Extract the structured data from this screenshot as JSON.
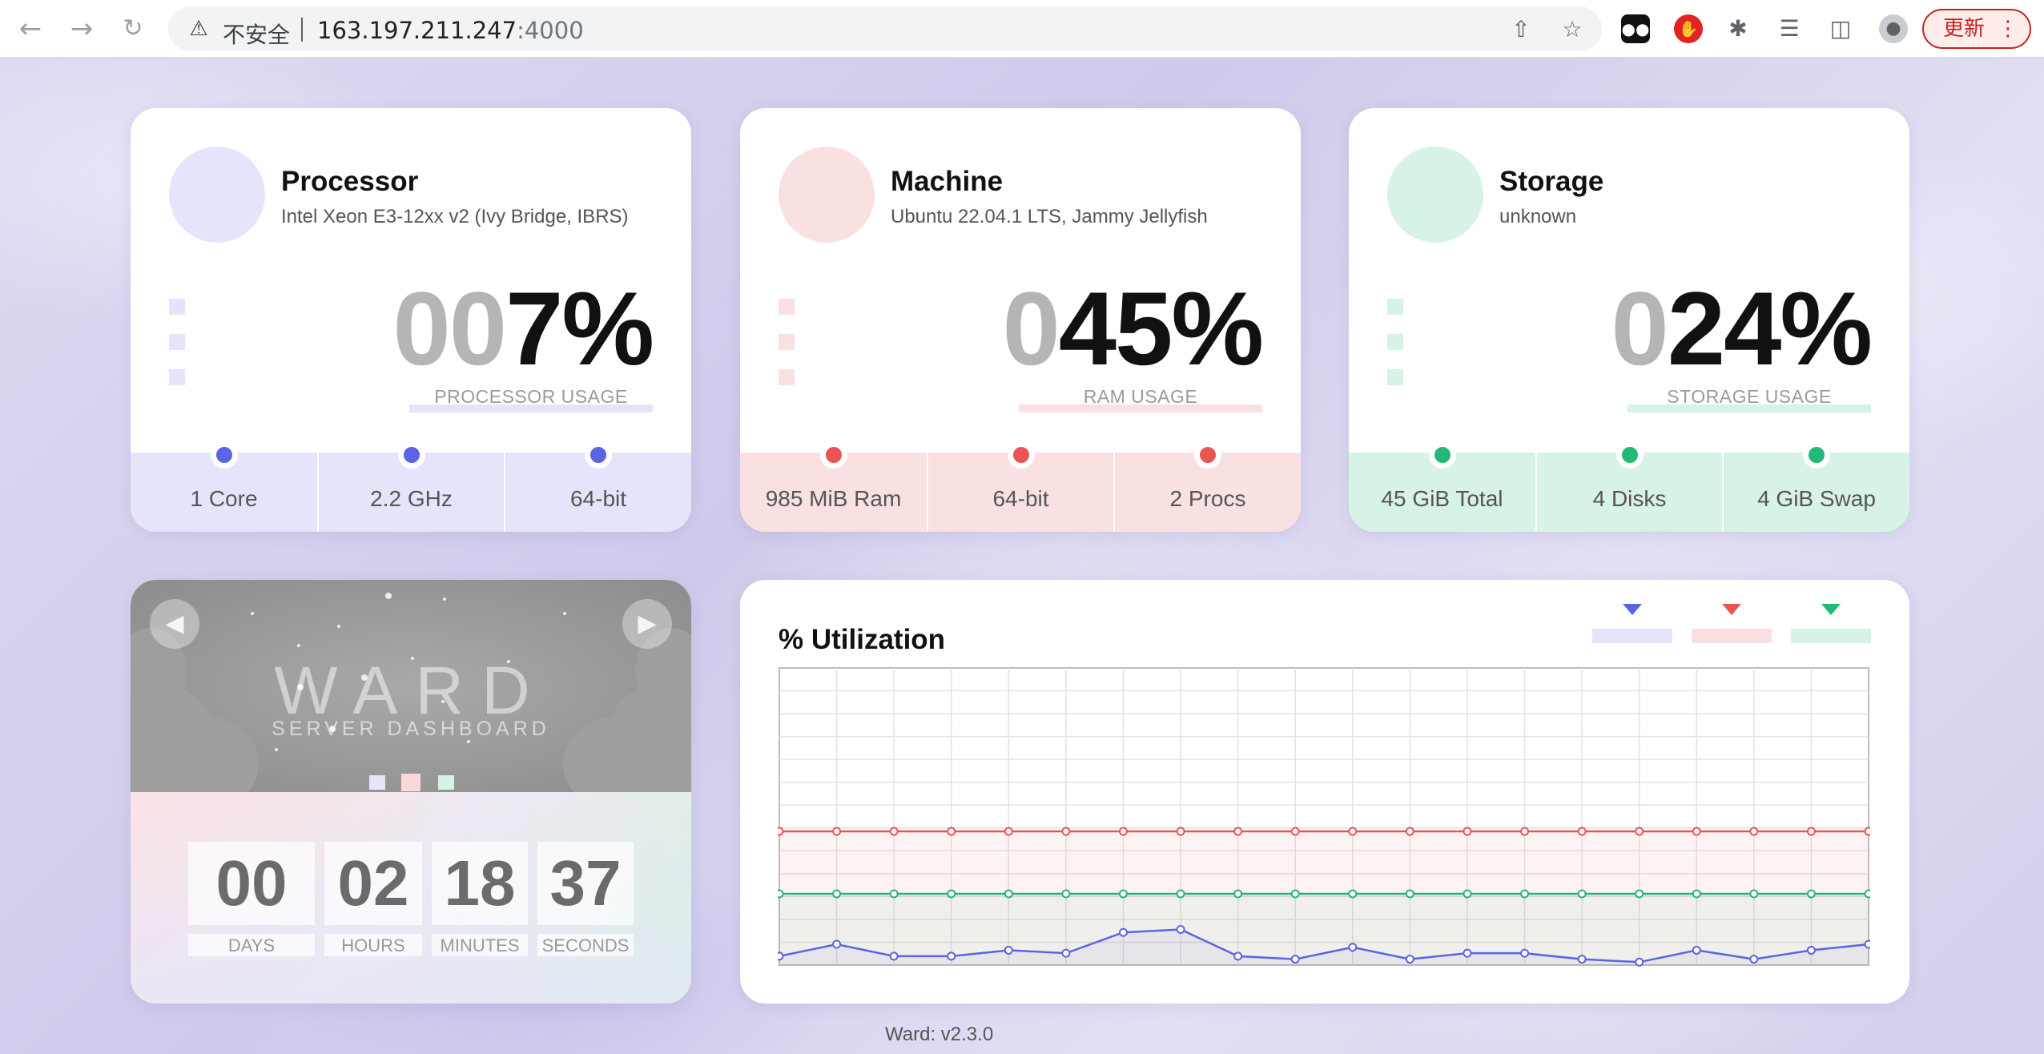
{
  "browser": {
    "insecure_label": "不安全",
    "url_host": "163.197.211.247",
    "url_port": ":4000",
    "update_label": "更新",
    "icons": [
      "back-icon",
      "forward-icon",
      "reload-icon",
      "warning-icon",
      "share-icon",
      "star-icon",
      "extension-icon",
      "playlist-icon",
      "sidebar-icon",
      "profile-icon",
      "menu-icon"
    ]
  },
  "colors": {
    "processor": "#5a64e6",
    "processor_light": "#e4e5fb",
    "machine": "#ec5454",
    "machine_light": "#f9e1e2",
    "storage": "#22b878",
    "storage_light": "#d6f3e5"
  },
  "processor": {
    "title": "Processor",
    "subtitle": "Intel Xeon E3-12xx v2 (Ivy Bridge, IBRS)",
    "usage_dim": "00",
    "usage_val": "7%",
    "usage_label": "PROCESSOR USAGE",
    "stats": [
      "1 Core",
      "2.2 GHz",
      "64-bit"
    ]
  },
  "machine": {
    "title": "Machine",
    "subtitle": "Ubuntu 22.04.1 LTS, Jammy Jellyfish",
    "usage_dim": "0",
    "usage_val": "45%",
    "usage_label": "RAM USAGE",
    "stats": [
      "985 MiB Ram",
      "64-bit",
      "2 Procs"
    ]
  },
  "storage": {
    "title": "Storage",
    "subtitle": "unknown",
    "usage_dim": "0",
    "usage_val": "24%",
    "usage_label": "STORAGE USAGE",
    "stats": [
      "45 GiB Total",
      "4 Disks",
      "4 GiB Swap"
    ]
  },
  "ward": {
    "title": "WARD",
    "subtitle": "SERVER DASHBOARD",
    "uptime": {
      "days": "00",
      "hours": "02",
      "minutes": "18",
      "seconds": "37",
      "days_label": "DAYS",
      "hours_label": "HOURS",
      "minutes_label": "MINUTES",
      "seconds_label": "SECONDS"
    }
  },
  "chart_data": {
    "type": "line",
    "title": "% Utilization",
    "ylim": [
      0,
      100
    ],
    "grid": true,
    "legend": "top-right",
    "x": [
      1,
      2,
      3,
      4,
      5,
      6,
      7,
      8,
      9,
      10,
      11,
      12,
      13,
      14,
      15,
      16,
      17,
      18,
      19,
      20
    ],
    "series": [
      {
        "color": "#ec5454",
        "values": [
          45,
          45,
          45,
          45,
          45,
          45,
          45,
          45,
          45,
          45,
          45,
          45,
          45,
          45,
          45,
          45,
          45,
          45,
          45,
          45
        ]
      },
      {
        "color": "#22b878",
        "values": [
          24,
          24,
          24,
          24,
          24,
          24,
          24,
          24,
          24,
          24,
          24,
          24,
          24,
          24,
          24,
          24,
          24,
          24,
          24,
          24
        ]
      },
      {
        "color": "#5a64e6",
        "values": [
          3,
          7,
          3,
          3,
          5,
          4,
          11,
          12,
          3,
          2,
          6,
          2,
          4,
          4,
          2,
          1,
          5,
          2,
          5,
          7
        ]
      }
    ]
  },
  "footer": {
    "version": "Ward: v2.3.0"
  }
}
